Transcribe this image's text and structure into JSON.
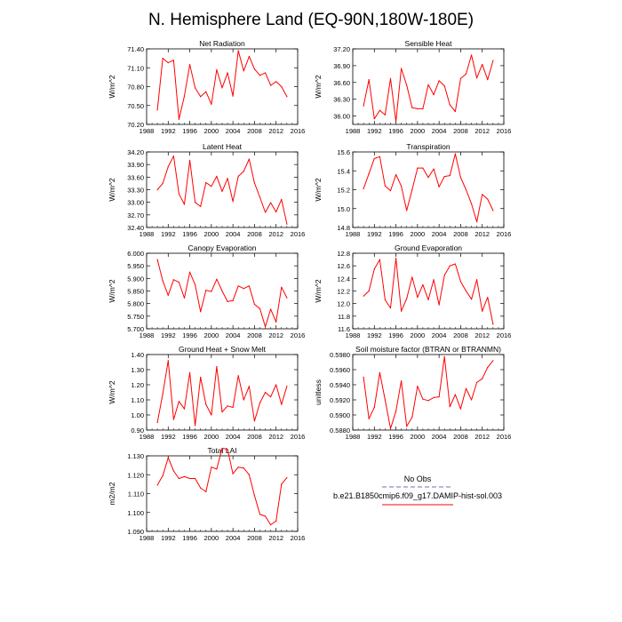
{
  "title": "N. Hemisphere Land (EQ-90N,180W-180E)",
  "colors": {
    "series": "#ff0000",
    "obs": "#9aa0d8",
    "axis": "#000000"
  },
  "legend": {
    "obs_label": "No Obs",
    "model_label": "b.e21.B1850cmip6.f09_g17.DAMIP-hist-sol.003"
  },
  "chart_data": [
    {
      "type": "line",
      "title": "Net Radiation",
      "ylabel": "W/m^2",
      "xlim": [
        1988,
        2016
      ],
      "xticks": [
        1988,
        1992,
        1996,
        2000,
        2004,
        2008,
        2012,
        2016
      ],
      "ylim": [
        70.2,
        71.4
      ],
      "yticks": [
        "70.20",
        "70.50",
        "70.80",
        "71.10",
        "71.40"
      ],
      "x": [
        1990,
        1991,
        1992,
        1993,
        1994,
        1995,
        1996,
        1997,
        1998,
        1999,
        2000,
        2001,
        2002,
        2003,
        2004,
        2005,
        2006,
        2007,
        2008,
        2009,
        2010,
        2011,
        2012,
        2013,
        2014
      ],
      "values": [
        70.43,
        71.25,
        71.18,
        71.22,
        70.28,
        70.65,
        71.15,
        70.78,
        70.64,
        70.72,
        70.52,
        71.07,
        70.78,
        71.02,
        70.65,
        71.37,
        71.05,
        71.28,
        71.08,
        70.98,
        71.02,
        70.82,
        70.88,
        70.8,
        70.64
      ]
    },
    {
      "type": "line",
      "title": "Sensible Heat",
      "ylabel": "W/m^2",
      "xlim": [
        1988,
        2016
      ],
      "xticks": [
        1988,
        1992,
        1996,
        2000,
        2004,
        2008,
        2012,
        2016
      ],
      "ylim": [
        35.85,
        37.2
      ],
      "yticks": [
        "36.00",
        "36.30",
        "36.60",
        "36.90",
        "37.20"
      ],
      "x": [
        1990,
        1991,
        1992,
        1993,
        1994,
        1995,
        1996,
        1997,
        1998,
        1999,
        2000,
        2001,
        2002,
        2003,
        2004,
        2005,
        2006,
        2007,
        2008,
        2009,
        2010,
        2011,
        2012,
        2013,
        2014
      ],
      "values": [
        36.18,
        36.65,
        35.95,
        36.1,
        36.02,
        36.67,
        35.9,
        36.85,
        36.55,
        36.15,
        36.13,
        36.13,
        36.56,
        36.38,
        36.63,
        36.54,
        36.2,
        36.08,
        36.67,
        36.75,
        37.09,
        36.68,
        36.92,
        36.65,
        36.99
      ]
    },
    {
      "type": "line",
      "title": "Latent Heat",
      "ylabel": "W/m^2",
      "xlim": [
        1988,
        2016
      ],
      "xticks": [
        1988,
        1992,
        1996,
        2000,
        2004,
        2008,
        2012,
        2016
      ],
      "ylim": [
        32.4,
        34.2
      ],
      "yticks": [
        "32.40",
        "32.70",
        "33.00",
        "33.30",
        "33.60",
        "33.90",
        "34.20"
      ],
      "x": [
        1990,
        1991,
        1992,
        1993,
        1994,
        1995,
        1996,
        1997,
        1998,
        1999,
        2000,
        2001,
        2002,
        2003,
        2004,
        2005,
        2006,
        2007,
        2008,
        2009,
        2010,
        2011,
        2012,
        2013,
        2014
      ],
      "values": [
        33.3,
        33.45,
        33.85,
        34.1,
        33.2,
        32.95,
        34.0,
        33.0,
        32.9,
        33.47,
        33.38,
        33.62,
        33.26,
        33.57,
        33.02,
        33.62,
        33.74,
        34.03,
        33.46,
        33.12,
        32.76,
        32.99,
        32.77,
        33.07,
        32.48
      ]
    },
    {
      "type": "line",
      "title": "Transpiration",
      "ylabel": "W/m^2",
      "xlim": [
        1988,
        2016
      ],
      "xticks": [
        1988,
        1992,
        1996,
        2000,
        2004,
        2008,
        2012,
        2016
      ],
      "ylim": [
        14.8,
        15.6
      ],
      "yticks": [
        "14.8",
        "15.0",
        "15.2",
        "15.4",
        "15.6"
      ],
      "x": [
        1990,
        1991,
        1992,
        1993,
        1994,
        1995,
        1996,
        1997,
        1998,
        1999,
        2000,
        2001,
        2002,
        2003,
        2004,
        2005,
        2006,
        2007,
        2008,
        2009,
        2010,
        2011,
        2012,
        2013,
        2014
      ],
      "values": [
        15.21,
        15.37,
        15.53,
        15.55,
        15.24,
        15.19,
        15.36,
        15.24,
        14.98,
        15.2,
        15.43,
        15.43,
        15.33,
        15.42,
        15.23,
        15.34,
        15.35,
        15.58,
        15.33,
        15.2,
        15.05,
        14.86,
        15.15,
        15.1,
        14.98
      ]
    },
    {
      "type": "line",
      "title": "Canopy Evaporation",
      "ylabel": "W/m^2",
      "xlim": [
        1988,
        2016
      ],
      "xticks": [
        1988,
        1992,
        1996,
        2000,
        2004,
        2008,
        2012,
        2016
      ],
      "ylim": [
        5.7,
        6.0
      ],
      "yticks": [
        "5.700",
        "5.750",
        "5.800",
        "5.850",
        "5.900",
        "5.950",
        "6.000"
      ],
      "x": [
        1990,
        1991,
        1992,
        1993,
        1994,
        1995,
        1996,
        1997,
        1998,
        1999,
        2000,
        2001,
        2002,
        2003,
        2004,
        2005,
        2006,
        2007,
        2008,
        2009,
        2010,
        2011,
        2012,
        2013,
        2014
      ],
      "values": [
        5.975,
        5.89,
        5.833,
        5.895,
        5.885,
        5.822,
        5.925,
        5.875,
        5.768,
        5.853,
        5.848,
        5.897,
        5.85,
        5.808,
        5.812,
        5.87,
        5.86,
        5.87,
        5.797,
        5.78,
        5.708,
        5.778,
        5.727,
        5.865,
        5.823
      ]
    },
    {
      "type": "line",
      "title": "Ground Evaporation",
      "ylabel": "W/m^2",
      "xlim": [
        1988,
        2016
      ],
      "xticks": [
        1988,
        1992,
        1996,
        2000,
        2004,
        2008,
        2012,
        2016
      ],
      "ylim": [
        11.6,
        12.8
      ],
      "yticks": [
        "11.6",
        "11.8",
        "12.0",
        "12.2",
        "12.4",
        "12.6",
        "12.8"
      ],
      "x": [
        1990,
        1991,
        1992,
        1993,
        1994,
        1995,
        1996,
        1997,
        1998,
        1999,
        2000,
        2001,
        2002,
        2003,
        2004,
        2005,
        2006,
        2007,
        2008,
        2009,
        2010,
        2011,
        2012,
        2013,
        2014
      ],
      "values": [
        12.12,
        12.2,
        12.55,
        12.7,
        12.06,
        11.93,
        12.72,
        11.88,
        12.08,
        12.42,
        12.1,
        12.3,
        12.06,
        12.38,
        11.98,
        12.45,
        12.6,
        12.63,
        12.35,
        12.2,
        12.07,
        12.38,
        11.88,
        12.1,
        11.67
      ]
    },
    {
      "type": "line",
      "title": "Ground Heat + Snow Melt",
      "ylabel": "W/m^2",
      "xlim": [
        1988,
        2016
      ],
      "xticks": [
        1988,
        1992,
        1996,
        2000,
        2004,
        2008,
        2012,
        2016
      ],
      "ylim": [
        0.9,
        1.4
      ],
      "yticks": [
        "0.90",
        "1.00",
        "1.10",
        "1.20",
        "1.30",
        "1.40"
      ],
      "x": [
        1990,
        1991,
        1992,
        1993,
        1994,
        1995,
        1996,
        1997,
        1998,
        1999,
        2000,
        2001,
        2002,
        2003,
        2004,
        2005,
        2006,
        2007,
        2008,
        2009,
        2010,
        2011,
        2012,
        2013,
        2014
      ],
      "values": [
        0.95,
        1.14,
        1.36,
        0.97,
        1.09,
        1.04,
        1.28,
        0.93,
        1.25,
        1.07,
        1.0,
        1.32,
        1.02,
        1.06,
        1.05,
        1.26,
        1.1,
        1.19,
        0.96,
        1.08,
        1.15,
        1.12,
        1.2,
        1.07,
        1.19
      ]
    },
    {
      "type": "line",
      "title": "Soil moisture factor (BTRAN or BTRANMN)",
      "ylabel": "unitless",
      "xlim": [
        1988,
        2016
      ],
      "xticks": [
        1988,
        1992,
        1996,
        2000,
        2004,
        2008,
        2012,
        2016
      ],
      "ylim": [
        0.588,
        0.598
      ],
      "yticks": [
        "0.5880",
        "0.5900",
        "0.5920",
        "0.5940",
        "0.5960",
        "0.5980"
      ],
      "x": [
        1990,
        1991,
        1992,
        1993,
        1994,
        1995,
        1996,
        1997,
        1998,
        1999,
        2000,
        2001,
        2002,
        2003,
        2004,
        2005,
        2006,
        2007,
        2008,
        2009,
        2010,
        2011,
        2012,
        2013,
        2014
      ],
      "values": [
        0.595,
        0.5895,
        0.591,
        0.5956,
        0.592,
        0.5882,
        0.5905,
        0.5945,
        0.5885,
        0.5897,
        0.5938,
        0.5921,
        0.5919,
        0.5923,
        0.5924,
        0.5977,
        0.5911,
        0.5927,
        0.5908,
        0.5935,
        0.592,
        0.5943,
        0.5948,
        0.5963,
        0.5972
      ]
    },
    {
      "type": "line",
      "title": "Total LAI",
      "ylabel": "m2/m2",
      "xlim": [
        1988,
        2016
      ],
      "xticks": [
        1988,
        1992,
        1996,
        2000,
        2004,
        2008,
        2012,
        2016
      ],
      "ylim": [
        1.09,
        1.13
      ],
      "yticks": [
        "1.090",
        "1.100",
        "1.110",
        "1.120",
        "1.130"
      ],
      "x": [
        1990,
        1991,
        1992,
        1993,
        1994,
        1995,
        1996,
        1997,
        1998,
        1999,
        2000,
        2001,
        2002,
        2003,
        2004,
        2005,
        2006,
        2007,
        2008,
        2009,
        2010,
        2011,
        2012,
        2013,
        2014
      ],
      "values": [
        1.1145,
        1.1195,
        1.129,
        1.122,
        1.118,
        1.119,
        1.118,
        1.118,
        1.113,
        1.111,
        1.124,
        1.123,
        1.134,
        1.1335,
        1.1205,
        1.124,
        1.1235,
        1.12,
        1.109,
        1.099,
        1.098,
        1.0935,
        1.0955,
        1.115,
        1.1185
      ]
    }
  ]
}
